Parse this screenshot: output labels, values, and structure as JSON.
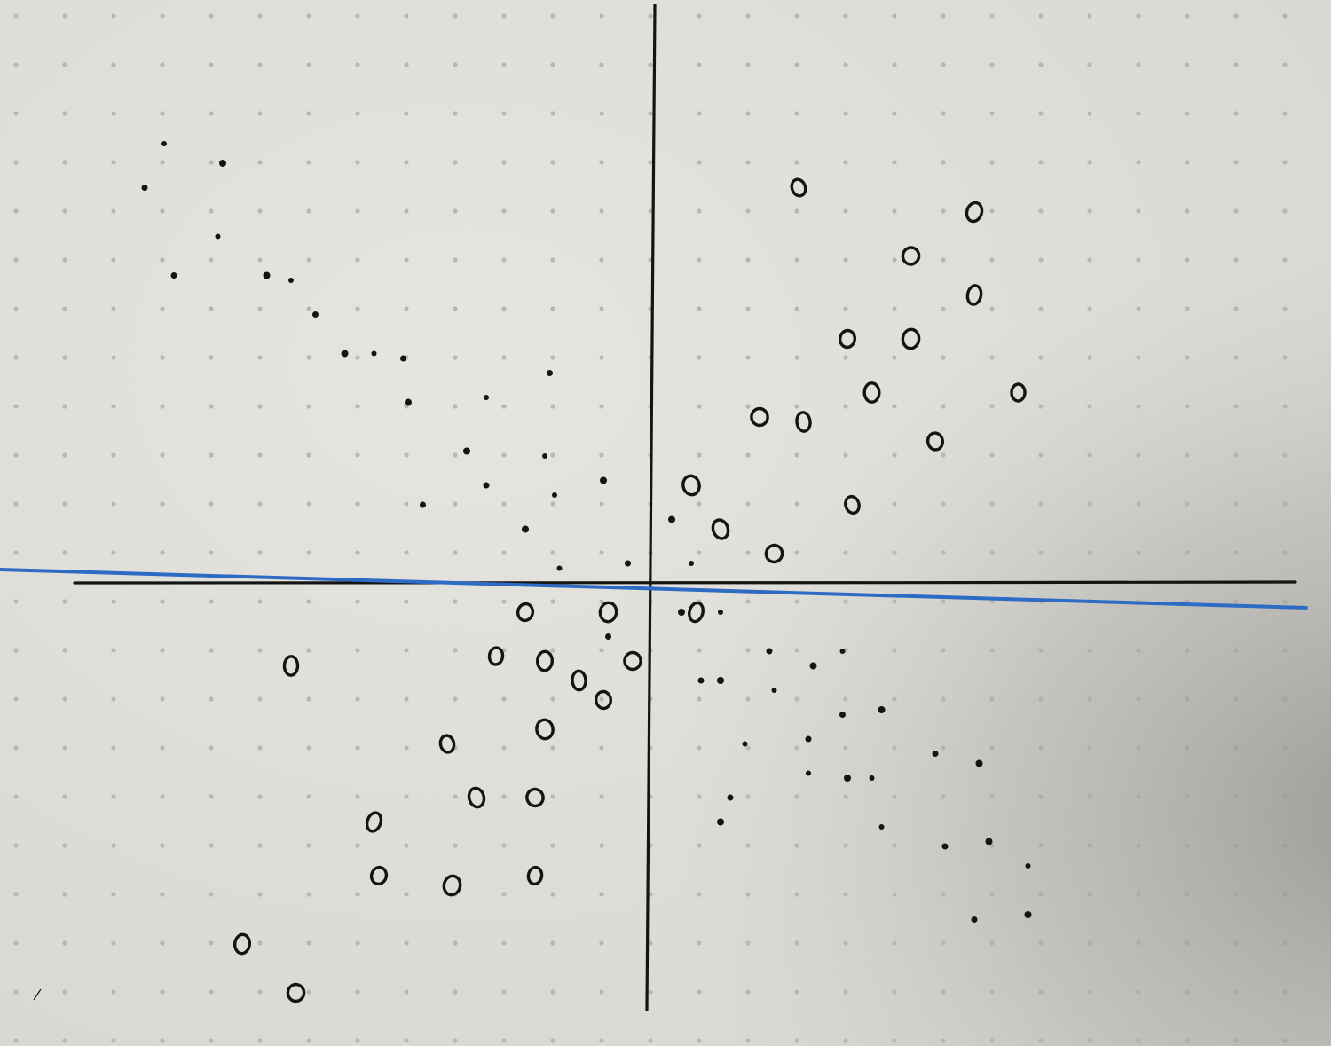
{
  "photo": {
    "colors": {
      "paper": "#dcdbd5",
      "paper_light": "#e6e5df",
      "grid_dot": "#b8b7b1",
      "ink": "#141414",
      "separator": "#2d6cc4",
      "shadow": "#8f8f8c"
    }
  },
  "chart_data": {
    "type": "scatter",
    "title": "",
    "xlabel": "",
    "ylabel": "",
    "xlim": [
      -11,
      13
    ],
    "ylim": [
      -9,
      12
    ],
    "grid": true,
    "legend": "none",
    "series": [
      {
        "marker": "dot",
        "points": [
          [
            -10.0,
            9.0
          ],
          [
            -10.4,
            8.1
          ],
          [
            -8.8,
            8.6
          ],
          [
            -8.9,
            7.1
          ],
          [
            -9.8,
            6.3
          ],
          [
            -7.9,
            6.3
          ],
          [
            -7.4,
            6.2
          ],
          [
            -6.9,
            5.5
          ],
          [
            -6.3,
            4.7
          ],
          [
            -5.7,
            4.7
          ],
          [
            -5.1,
            4.6
          ],
          [
            -5.0,
            3.7
          ],
          [
            -3.4,
            3.8
          ],
          [
            -2.1,
            4.3
          ],
          [
            -3.8,
            2.7
          ],
          [
            -2.2,
            2.6
          ],
          [
            -3.4,
            2.0
          ],
          [
            -1.0,
            2.1
          ],
          [
            -2.0,
            1.8
          ],
          [
            -4.7,
            1.6
          ],
          [
            -2.6,
            1.1
          ],
          [
            -1.9,
            0.3
          ],
          [
            -0.5,
            0.4
          ],
          [
            0.4,
            1.3
          ],
          [
            0.8,
            0.4
          ],
          [
            -0.9,
            -1.1
          ],
          [
            0.6,
            -0.6
          ],
          [
            1.4,
            -0.6
          ],
          [
            2.4,
            -1.4
          ],
          [
            3.3,
            -1.7
          ],
          [
            3.9,
            -1.4
          ],
          [
            1.0,
            -2.0
          ],
          [
            1.4,
            -2.0
          ],
          [
            2.5,
            -2.2
          ],
          [
            3.9,
            -2.7
          ],
          [
            4.7,
            -2.6
          ],
          [
            1.9,
            -3.3
          ],
          [
            3.2,
            -3.2
          ],
          [
            4.0,
            -4.0
          ],
          [
            4.5,
            -4.0
          ],
          [
            5.8,
            -3.5
          ],
          [
            6.7,
            -3.7
          ],
          [
            3.2,
            -3.9
          ],
          [
            1.6,
            -4.4
          ],
          [
            1.4,
            -4.9
          ],
          [
            4.7,
            -5.0
          ],
          [
            6.0,
            -5.4
          ],
          [
            6.9,
            -5.3
          ],
          [
            7.7,
            -5.8
          ],
          [
            6.6,
            -6.9
          ],
          [
            7.7,
            -6.8
          ]
        ]
      },
      {
        "marker": "ring",
        "points": [
          [
            3.0,
            8.1
          ],
          [
            6.6,
            7.6
          ],
          [
            5.3,
            6.7
          ],
          [
            6.6,
            5.9
          ],
          [
            4.0,
            5.0
          ],
          [
            5.3,
            5.0
          ],
          [
            7.5,
            3.9
          ],
          [
            4.5,
            3.9
          ],
          [
            2.2,
            3.4
          ],
          [
            3.1,
            3.3
          ],
          [
            5.8,
            2.9
          ],
          [
            0.8,
            2.0
          ],
          [
            4.1,
            1.6
          ],
          [
            1.4,
            1.1
          ],
          [
            2.5,
            0.6
          ],
          [
            0.9,
            -0.6
          ],
          [
            -2.6,
            -0.6
          ],
          [
            -0.9,
            -0.6
          ],
          [
            -3.2,
            -1.5
          ],
          [
            -2.2,
            -1.6
          ],
          [
            -0.4,
            -1.6
          ],
          [
            -1.5,
            -2.0
          ],
          [
            -1.0,
            -2.4
          ],
          [
            -2.2,
            -3.0
          ],
          [
            -4.2,
            -3.3
          ],
          [
            -3.6,
            -4.4
          ],
          [
            -2.4,
            -4.4
          ],
          [
            -5.7,
            -4.9
          ],
          [
            -5.6,
            -6.0
          ],
          [
            -4.1,
            -6.2
          ],
          [
            -2.4,
            -6.0
          ],
          [
            -8.4,
            -7.4
          ],
          [
            -7.3,
            -8.4
          ],
          [
            -7.4,
            -1.7
          ]
        ]
      }
    ]
  }
}
